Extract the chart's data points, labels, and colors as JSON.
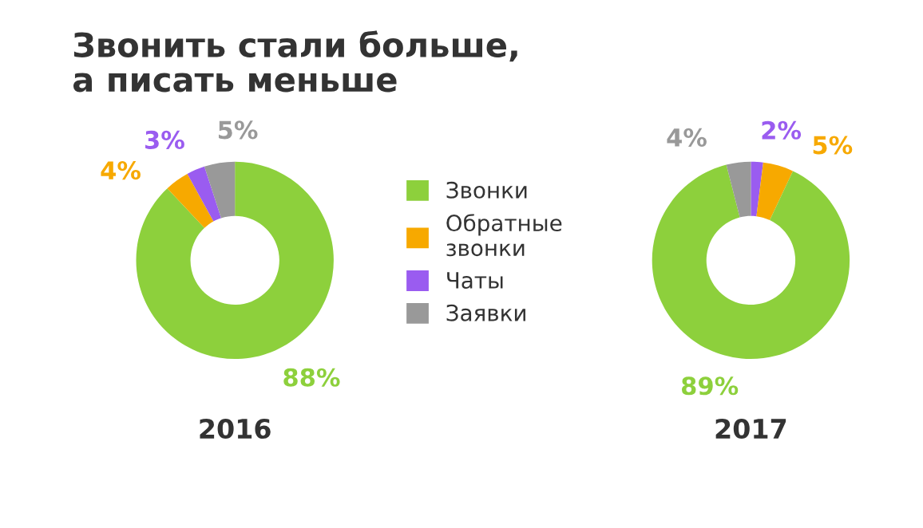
{
  "chart_data": [
    {
      "type": "donut",
      "title": "Звонить стали больше,\nа писать меньше",
      "xlabel": "2016",
      "categories": [
        "Звонки",
        "Обратные\nзвонки",
        "Чаты",
        "Заявки"
      ],
      "values": [
        88,
        4,
        3,
        5
      ],
      "colors": [
        "#8dd03c",
        "#f7a900",
        "#9a5cf0",
        "#999999"
      ],
      "value_labels": [
        "88%",
        "4%",
        "3%",
        "5%"
      ],
      "legend": "right"
    },
    {
      "type": "donut",
      "xlabel": "2017",
      "categories": [
        null,
        null,
        null,
        null
      ],
      "values": [
        2,
        5,
        89,
        4
      ],
      "colors": [
        "#9a5cf0",
        "#f7a900",
        "#8dd03c",
        "#999999"
      ],
      "value_labels": [
        "2%",
        "5%",
        "89%",
        "4%"
      ]
    }
  ]
}
